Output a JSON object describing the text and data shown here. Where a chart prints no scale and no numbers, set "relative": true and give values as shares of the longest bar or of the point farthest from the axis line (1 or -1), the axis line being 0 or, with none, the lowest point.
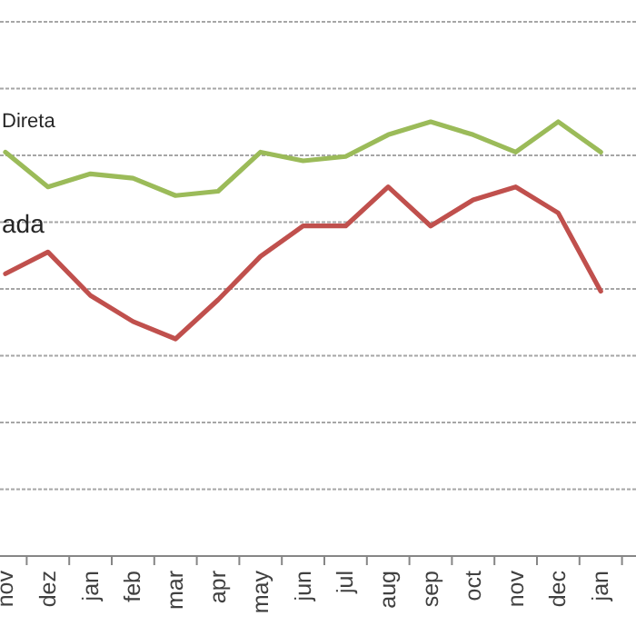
{
  "chart_data": {
    "type": "line",
    "relative": true,
    "grid": "y",
    "categories": [
      "nov",
      "dez",
      "jan",
      "feb",
      "mar",
      "apr",
      "may",
      "jun",
      "jul",
      "aug",
      "sep",
      "oct",
      "nov",
      "dec",
      "jan"
    ],
    "series": [
      {
        "name": "Direta",
        "color": "#9bbb59",
        "values": [
          0.93,
          0.85,
          0.88,
          0.87,
          0.83,
          0.84,
          0.93,
          0.91,
          0.92,
          0.97,
          1,
          0.97,
          0.93,
          1,
          0.93
        ]
      },
      {
        "name": "ada",
        "color": "#c0504d",
        "values": [
          0.65,
          0.7,
          0.6,
          0.54,
          0.5,
          0.59,
          0.69,
          0.76,
          0.76,
          0.85,
          0.76,
          0.82,
          0.85,
          0.79,
          0.61
        ]
      }
    ]
  }
}
